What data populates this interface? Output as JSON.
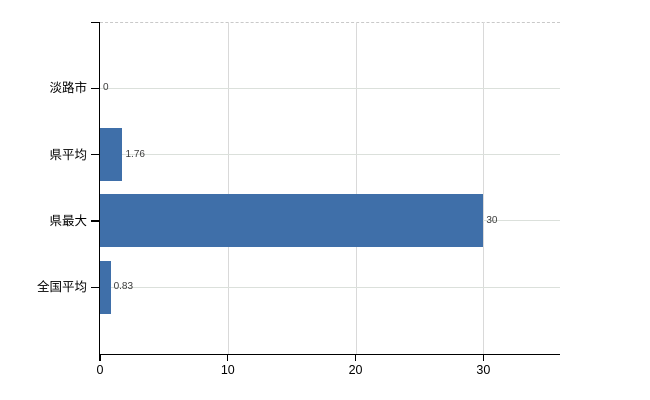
{
  "chart_data": {
    "type": "bar",
    "orientation": "horizontal",
    "title": "",
    "xlabel": "",
    "ylabel": "",
    "categories": [
      "淡路市",
      "県平均",
      "県最大",
      "全国平均"
    ],
    "values": [
      0,
      1.76,
      30,
      0.83
    ],
    "value_labels": [
      "0",
      "1.76",
      "30",
      "0.83"
    ],
    "x_ticks": [
      0,
      10,
      20,
      30
    ],
    "x_tick_labels": [
      "0",
      "10",
      "20",
      "30"
    ],
    "xlim": [
      0,
      36
    ],
    "grid": true,
    "legend": "none",
    "colors": {
      "bar": "#3F6FA9",
      "axis": "#000000",
      "gridline_horizontal": "#dbe0db",
      "gridline_vertical": "#d9d9d9",
      "plot_top_border": "#c9c9c9",
      "value_label_text": "#3c3c3c",
      "tick_label_text": "#000000",
      "background": "#ffffff"
    }
  }
}
